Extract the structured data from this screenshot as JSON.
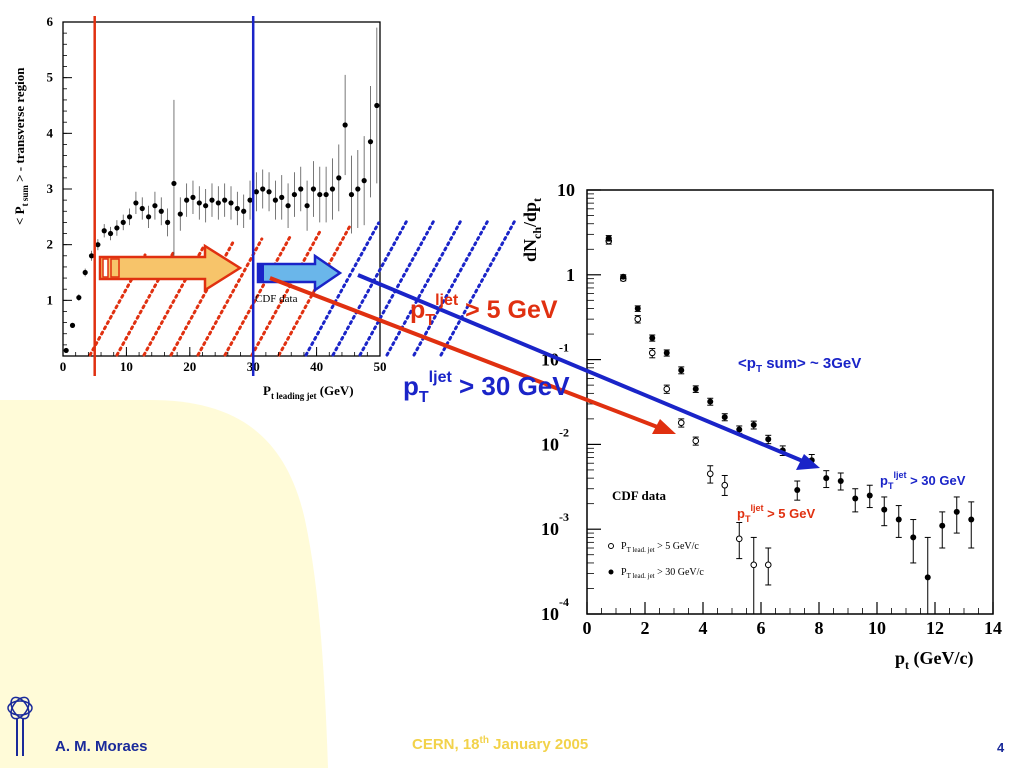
{
  "slide": {
    "author": "A. M. Moraes",
    "conference_pre": "CERN, 18",
    "conference_sup": "th",
    "conference_post": " January 2005",
    "page_number": "4"
  },
  "colors": {
    "red": "#e03010",
    "blue": "#1a24c8",
    "navy": "#1a2a9a",
    "orange_fill": "#f7c46a",
    "blue_fill": "#6ab6ea",
    "bg_yellow": "#fffbd8"
  },
  "annotations": {
    "big5_prefix": "p",
    "big5_sub": "T",
    "big5_sup": "ljet",
    "big5_suffix": " > 5 GeV",
    "big30_prefix": "p",
    "big30_sub": "T",
    "big30_sup": "ljet",
    "big30_suffix": " > 30 GeV",
    "sum_prefix": "<p",
    "sum_sub": "T",
    "sum_suffix": " sum> ~ 3GeV",
    "small30_prefix": "p",
    "small30_sub": "T",
    "small30_sup": "ljet",
    "small30_suffix": " > 30 GeV",
    "small5_prefix": "p",
    "small5_sub": "T",
    "small5_sup": "ljet",
    "small5_suffix": " > 5 GeV"
  },
  "chart_data": [
    {
      "type": "scatter",
      "title": "",
      "ylabel_main": "< P",
      "ylabel_sub": "t sum",
      "ylabel_tail": " > - transverse region",
      "xlabel_main": "P",
      "xlabel_sub": "t leading jet",
      "xlabel_tail": " (GeV)",
      "annotation": "CDF data",
      "xlim": [
        0,
        50
      ],
      "ylim": [
        0,
        6
      ],
      "xticks": [
        "0",
        "10",
        "20",
        "30",
        "40",
        "50"
      ],
      "yticks": [
        "1",
        "2",
        "3",
        "4",
        "5",
        "6"
      ],
      "cut_lines": [
        5,
        30
      ],
      "series": [
        {
          "x": [
            0.5,
            1.5,
            2.5,
            3.5,
            4.5,
            5.5,
            6.5,
            7.5,
            8.5,
            9.5,
            10.5,
            11.5,
            12.5,
            13.5,
            14.5,
            15.5,
            16.5,
            17.5,
            18.5,
            19.5,
            20.5,
            21.5,
            22.5,
            23.5,
            24.5,
            25.5,
            26.5,
            27.5,
            28.5,
            29.5,
            30.5,
            31.5,
            32.5,
            33.5,
            34.5,
            35.5,
            36.5,
            37.5,
            38.5,
            39.5,
            40.5,
            41.5,
            42.5,
            43.5,
            44.5,
            45.5,
            46.5,
            47.5,
            48.5,
            49.5
          ],
          "y": [
            0.1,
            0.55,
            1.05,
            1.5,
            1.8,
            2.0,
            2.25,
            2.2,
            2.3,
            2.4,
            2.5,
            2.75,
            2.65,
            2.5,
            2.7,
            2.6,
            2.4,
            3.1,
            2.55,
            2.8,
            2.85,
            2.75,
            2.7,
            2.8,
            2.75,
            2.8,
            2.75,
            2.65,
            2.6,
            2.8,
            2.95,
            3.0,
            2.95,
            2.8,
            2.85,
            2.7,
            2.9,
            3.0,
            2.7,
            3.0,
            2.9,
            2.9,
            3.0,
            3.2,
            4.15,
            2.9,
            3.0,
            3.15,
            3.85,
            4.5
          ],
          "err": [
            0.02,
            0.04,
            0.06,
            0.07,
            0.09,
            0.1,
            0.12,
            0.12,
            0.14,
            0.14,
            0.15,
            0.2,
            0.2,
            0.2,
            0.25,
            0.25,
            0.25,
            1.5,
            0.3,
            0.3,
            0.3,
            0.3,
            0.3,
            0.3,
            0.3,
            0.3,
            0.3,
            0.3,
            0.3,
            0.35,
            0.35,
            0.35,
            0.35,
            0.35,
            0.4,
            0.4,
            0.4,
            0.4,
            0.45,
            0.5,
            0.5,
            0.5,
            0.55,
            0.6,
            0.9,
            0.7,
            0.7,
            0.8,
            1.0,
            1.4
          ]
        }
      ]
    },
    {
      "type": "scatter",
      "title": "",
      "ylabel": "dN_ch/dp_t",
      "xlabel_main": "p",
      "xlabel_sub": "t",
      "xlabel_tail": " (GeV/c)",
      "annotation": "CDF data",
      "yscale": "log",
      "xlim": [
        0,
        14
      ],
      "ylim_exp": [
        -4,
        1
      ],
      "xticks": [
        "0",
        "2",
        "4",
        "6",
        "8",
        "10",
        "12",
        "14"
      ],
      "ytick_exponents": [
        "-4",
        "-3",
        "-2",
        "-1"
      ],
      "ytick_base": "10",
      "ytick_plain": [
        "1",
        "10"
      ],
      "legend": [
        {
          "name_main": "P",
          "name_sub": "T lead. jet",
          "name_tail": " > 5 GeV/c",
          "marker": "open"
        },
        {
          "name_main": "P",
          "name_sub": "T lead. jet",
          "name_tail": " > 30 GeV/c",
          "marker": "filled"
        }
      ],
      "series": [
        {
          "name": "P_T lead. jet > 5 GeV/c",
          "marker": "open",
          "x": [
            0.75,
            1.25,
            1.75,
            2.25,
            2.75,
            3.25,
            3.75,
            4.25,
            4.75,
            5.25,
            5.75,
            6.25
          ],
          "y": [
            2.5,
            0.9,
            0.3,
            0.12,
            0.045,
            0.018,
            0.011,
            0.0045,
            0.0033,
            0.00077,
            0.00038,
            0.00038
          ],
          "err_lo": [
            2.3,
            0.85,
            0.27,
            0.105,
            0.04,
            0.016,
            0.0098,
            0.0035,
            0.0025,
            0.00045,
            0.0001,
            0.00022
          ],
          "err_hi": [
            2.7,
            0.95,
            0.33,
            0.135,
            0.05,
            0.02,
            0.0122,
            0.0056,
            0.0043,
            0.0012,
            0.0008,
            0.0006
          ]
        },
        {
          "name": "P_T lead. jet > 30 GeV/c",
          "marker": "filled",
          "x": [
            0.75,
            1.25,
            1.75,
            2.25,
            2.75,
            3.25,
            3.75,
            4.25,
            4.75,
            5.25,
            5.75,
            6.25,
            6.75,
            7.25,
            7.75,
            8.25,
            8.75,
            9.25,
            9.75,
            10.25,
            10.75,
            11.25,
            11.75,
            12.25,
            12.75,
            13.25
          ],
          "y": [
            2.7,
            0.95,
            0.4,
            0.18,
            0.12,
            0.075,
            0.045,
            0.032,
            0.021,
            0.015,
            0.017,
            0.0115,
            0.0085,
            0.0029,
            0.0065,
            0.004,
            0.0037,
            0.0023,
            0.0025,
            0.0017,
            0.0013,
            0.0008,
            0.00027,
            0.0011,
            0.0016,
            0.0013
          ],
          "err_lo": [
            2.5,
            0.9,
            0.37,
            0.165,
            0.11,
            0.068,
            0.041,
            0.029,
            0.019,
            0.0135,
            0.0152,
            0.0102,
            0.0074,
            0.0022,
            0.0054,
            0.0031,
            0.0029,
            0.0016,
            0.0018,
            0.0011,
            0.0008,
            0.0004,
            0.0001,
            0.0006,
            0.0009,
            0.0006
          ],
          "err_hi": [
            2.9,
            1.0,
            0.43,
            0.195,
            0.13,
            0.082,
            0.049,
            0.035,
            0.023,
            0.0165,
            0.0188,
            0.0128,
            0.0096,
            0.0037,
            0.0076,
            0.0049,
            0.0046,
            0.003,
            0.0033,
            0.0024,
            0.0019,
            0.0013,
            0.0008,
            0.0016,
            0.0024,
            0.0021
          ]
        }
      ]
    }
  ]
}
